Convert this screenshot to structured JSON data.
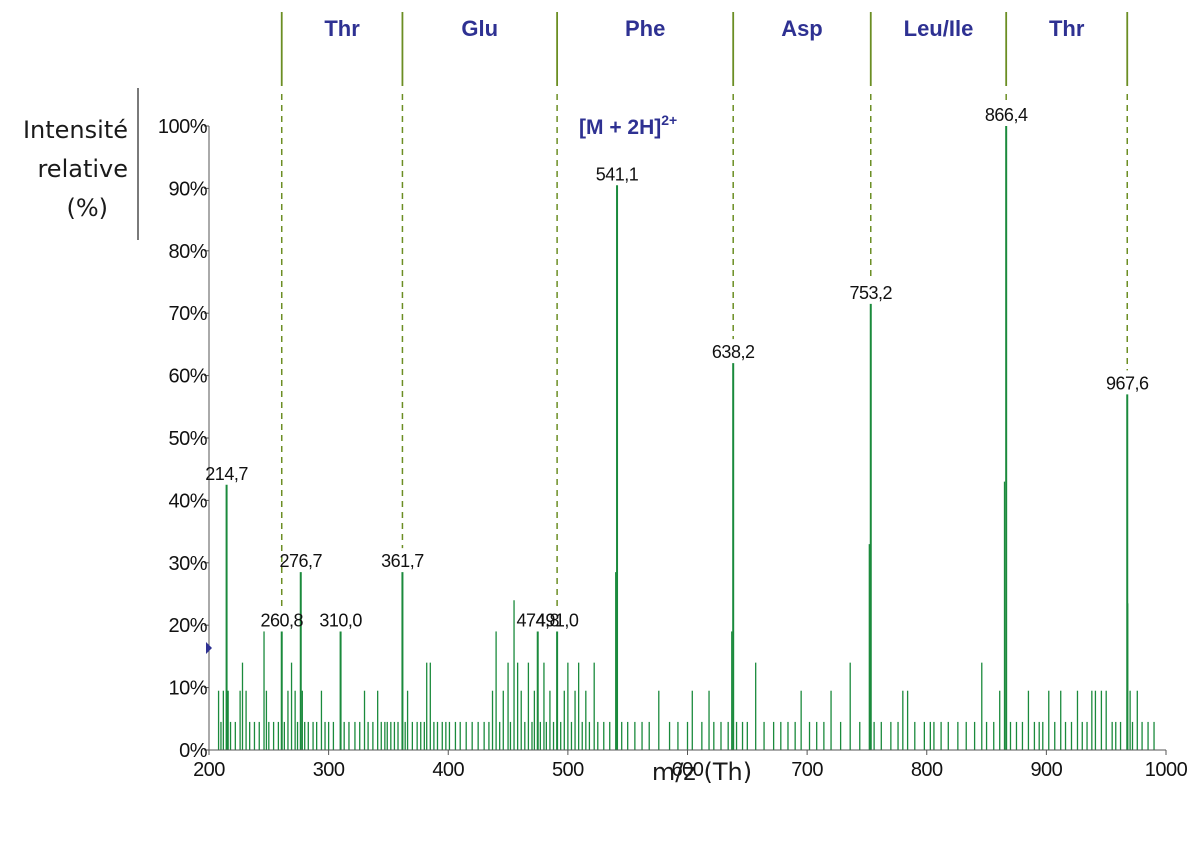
{
  "chart_data": {
    "type": "bar",
    "xlabel": "m/z (Th)",
    "ylabel_lines": [
      "Intensité",
      "relative",
      "(%)"
    ],
    "xlim": [
      200,
      1000
    ],
    "ylim": [
      0,
      100
    ],
    "x_ticks": [
      "200",
      "300",
      "400",
      "500",
      "600",
      "700",
      "800",
      "900",
      "1000"
    ],
    "y_ticks": [
      "0%",
      "10%",
      "20%",
      "30%",
      "40%",
      "50%",
      "60%",
      "70%",
      "80%",
      "90%",
      "100%"
    ],
    "precursor_label": "[M + 2H]",
    "precursor_charge": "2+",
    "labeled_peaks": [
      {
        "label": "214,7",
        "mz": 214.7,
        "intensity": 42.5
      },
      {
        "label": "260,8",
        "mz": 260.8,
        "intensity": 19
      },
      {
        "label": "276,7",
        "mz": 276.7,
        "intensity": 28.5
      },
      {
        "label": "310,0",
        "mz": 310.0,
        "intensity": 19
      },
      {
        "label": "361,7",
        "mz": 361.7,
        "intensity": 28.5
      },
      {
        "label": "474,8",
        "mz": 474.8,
        "intensity": 19
      },
      {
        "label": "491,0",
        "mz": 491.0,
        "intensity": 19
      },
      {
        "label": "541,1",
        "mz": 541.1,
        "intensity": 90.5
      },
      {
        "label": "638,2",
        "mz": 638.2,
        "intensity": 62
      },
      {
        "label": "753,2",
        "mz": 753.2,
        "intensity": 71.5
      },
      {
        "label": "866,4",
        "mz": 866.4,
        "intensity": 100
      },
      {
        "label": "967,6",
        "mz": 967.6,
        "intensity": 57
      }
    ],
    "minor_peaks": [
      [
        208,
        9.5
      ],
      [
        210,
        4.5
      ],
      [
        212,
        9.5
      ],
      [
        216,
        9.5
      ],
      [
        218,
        4.5
      ],
      [
        222,
        4.5
      ],
      [
        226,
        9.5
      ],
      [
        228,
        14
      ],
      [
        231,
        9.5
      ],
      [
        234,
        4.5
      ],
      [
        238,
        4.5
      ],
      [
        242,
        4.5
      ],
      [
        246,
        19
      ],
      [
        248,
        9.5
      ],
      [
        250,
        4.5
      ],
      [
        254,
        4.5
      ],
      [
        258,
        4.5
      ],
      [
        263,
        4.5
      ],
      [
        266,
        9.5
      ],
      [
        269,
        14
      ],
      [
        272,
        9.5
      ],
      [
        274,
        4.5
      ],
      [
        278,
        9.5
      ],
      [
        280,
        4.5
      ],
      [
        283,
        4.5
      ],
      [
        287,
        4.5
      ],
      [
        290,
        4.5
      ],
      [
        294,
        9.5
      ],
      [
        297,
        4.5
      ],
      [
        300,
        4.5
      ],
      [
        304,
        4.5
      ],
      [
        313,
        4.5
      ],
      [
        317,
        4.5
      ],
      [
        322,
        4.5
      ],
      [
        326,
        4.5
      ],
      [
        330,
        9.5
      ],
      [
        333,
        4.5
      ],
      [
        337,
        4.5
      ],
      [
        341,
        9.5
      ],
      [
        344,
        4.5
      ],
      [
        347,
        4.5
      ],
      [
        349,
        4.5
      ],
      [
        352,
        4.5
      ],
      [
        355,
        4.5
      ],
      [
        358,
        4.5
      ],
      [
        364,
        4.5
      ],
      [
        366,
        9.5
      ],
      [
        370,
        4.5
      ],
      [
        374,
        4.5
      ],
      [
        377,
        4.5
      ],
      [
        380,
        4.5
      ],
      [
        382,
        14
      ],
      [
        385,
        14
      ],
      [
        388,
        4.5
      ],
      [
        391,
        4.5
      ],
      [
        395,
        4.5
      ],
      [
        398,
        4.5
      ],
      [
        401,
        4.5
      ],
      [
        406,
        4.5
      ],
      [
        410,
        4.5
      ],
      [
        415,
        4.5
      ],
      [
        420,
        4.5
      ],
      [
        425,
        4.5
      ],
      [
        430,
        4.5
      ],
      [
        434,
        4.5
      ],
      [
        437,
        9.5
      ],
      [
        440,
        19
      ],
      [
        443,
        4.5
      ],
      [
        446,
        9.5
      ],
      [
        450,
        14
      ],
      [
        452,
        4.5
      ],
      [
        455,
        24
      ],
      [
        458,
        14
      ],
      [
        461,
        9.5
      ],
      [
        464,
        4.5
      ],
      [
        467,
        14
      ],
      [
        470,
        4.5
      ],
      [
        472,
        9.5
      ],
      [
        477,
        4.5
      ],
      [
        480,
        14
      ],
      [
        482,
        4.5
      ],
      [
        485,
        9.5
      ],
      [
        488,
        4.5
      ],
      [
        494,
        4.5
      ],
      [
        497,
        9.5
      ],
      [
        500,
        14
      ],
      [
        503,
        4.5
      ],
      [
        506,
        9.5
      ],
      [
        509,
        14
      ],
      [
        512,
        4.5
      ],
      [
        515,
        9.5
      ],
      [
        518,
        4.5
      ],
      [
        522,
        14
      ],
      [
        525,
        4.5
      ],
      [
        530,
        4.5
      ],
      [
        535,
        4.5
      ],
      [
        540,
        28.5
      ],
      [
        545,
        4.5
      ],
      [
        550,
        4.5
      ],
      [
        556,
        4.5
      ],
      [
        562,
        4.5
      ],
      [
        568,
        4.5
      ],
      [
        576,
        9.5
      ],
      [
        585,
        4.5
      ],
      [
        592,
        4.5
      ],
      [
        600,
        4.5
      ],
      [
        604,
        9.5
      ],
      [
        612,
        4.5
      ],
      [
        618,
        9.5
      ],
      [
        622,
        4.5
      ],
      [
        628,
        4.5
      ],
      [
        634,
        4.5
      ],
      [
        637,
        19
      ],
      [
        641,
        4.5
      ],
      [
        646,
        4.5
      ],
      [
        650,
        4.5
      ],
      [
        657,
        14
      ],
      [
        664,
        4.5
      ],
      [
        672,
        4.5
      ],
      [
        678,
        4.5
      ],
      [
        684,
        4.5
      ],
      [
        690,
        4.5
      ],
      [
        695,
        9.5
      ],
      [
        702,
        4.5
      ],
      [
        708,
        4.5
      ],
      [
        714,
        4.5
      ],
      [
        720,
        9.5
      ],
      [
        728,
        4.5
      ],
      [
        736,
        14
      ],
      [
        744,
        4.5
      ],
      [
        752,
        33
      ],
      [
        756,
        4.5
      ],
      [
        762,
        4.5
      ],
      [
        770,
        4.5
      ],
      [
        776,
        4.5
      ],
      [
        780,
        9.5
      ],
      [
        784,
        9.5
      ],
      [
        790,
        4.5
      ],
      [
        798,
        4.5
      ],
      [
        803,
        4.5
      ],
      [
        806,
        4.5
      ],
      [
        812,
        4.5
      ],
      [
        818,
        4.5
      ],
      [
        826,
        4.5
      ],
      [
        833,
        4.5
      ],
      [
        840,
        4.5
      ],
      [
        846,
        14
      ],
      [
        850,
        4.5
      ],
      [
        856,
        4.5
      ],
      [
        861,
        9.5
      ],
      [
        865,
        43
      ],
      [
        870,
        4.5
      ],
      [
        875,
        4.5
      ],
      [
        880,
        4.5
      ],
      [
        885,
        9.5
      ],
      [
        890,
        4.5
      ],
      [
        894,
        4.5
      ],
      [
        897,
        4.5
      ],
      [
        902,
        9.5
      ],
      [
        907,
        4.5
      ],
      [
        912,
        9.5
      ],
      [
        916,
        4.5
      ],
      [
        921,
        4.5
      ],
      [
        926,
        9.5
      ],
      [
        930,
        4.5
      ],
      [
        934,
        4.5
      ],
      [
        938,
        9.5
      ],
      [
        941,
        9.5
      ],
      [
        946,
        9.5
      ],
      [
        950,
        9.5
      ],
      [
        955,
        4.5
      ],
      [
        958,
        4.5
      ],
      [
        962,
        4.5
      ],
      [
        968,
        23.5
      ],
      [
        970,
        9.5
      ],
      [
        972,
        4.5
      ],
      [
        976,
        9.5
      ],
      [
        980,
        4.5
      ],
      [
        985,
        4.5
      ],
      [
        990,
        4.5
      ]
    ],
    "sequence_boundaries_mz": [
      260.8,
      361.7,
      491.0,
      638.2,
      753.2,
      866.4,
      967.6
    ],
    "sequence_labels": [
      "Thr",
      "Glu",
      "Phe",
      "Asp",
      "Leu/Ile",
      "Thr"
    ],
    "colors": {
      "peaks": "#1a8a3c",
      "sequence_lines": "#6b8e23",
      "amino_acid_text": "#2e3192",
      "axis": "#555555"
    }
  }
}
